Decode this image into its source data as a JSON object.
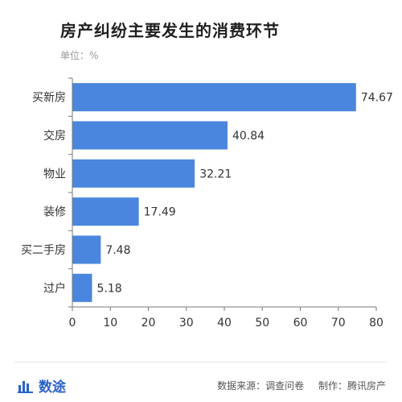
{
  "header": {
    "title": "房产纠纷主要发生的消费环节",
    "unit": "单位：%"
  },
  "footer": {
    "brand": "数途",
    "source": "数据来源：调查问卷",
    "producer": "制作：腾讯房产"
  },
  "colors": {
    "bar": "#4a86dd",
    "axis": "#7a7a7a",
    "grid": "#e9e9e9",
    "brand": "#2a62c9"
  },
  "chart_data": {
    "type": "bar",
    "orientation": "horizontal",
    "categories": [
      "买新房",
      "交房",
      "物业",
      "装修",
      "买二手房",
      "过户"
    ],
    "values": [
      74.67,
      40.84,
      32.21,
      17.49,
      7.48,
      5.18
    ],
    "value_labels": [
      "74.67",
      "40.84",
      "32.21",
      "17.49",
      "7.48",
      "5.18"
    ],
    "xlim": [
      0,
      80
    ],
    "xticks": [
      0,
      10,
      20,
      30,
      40,
      50,
      60,
      70,
      80
    ],
    "grid": false
  }
}
